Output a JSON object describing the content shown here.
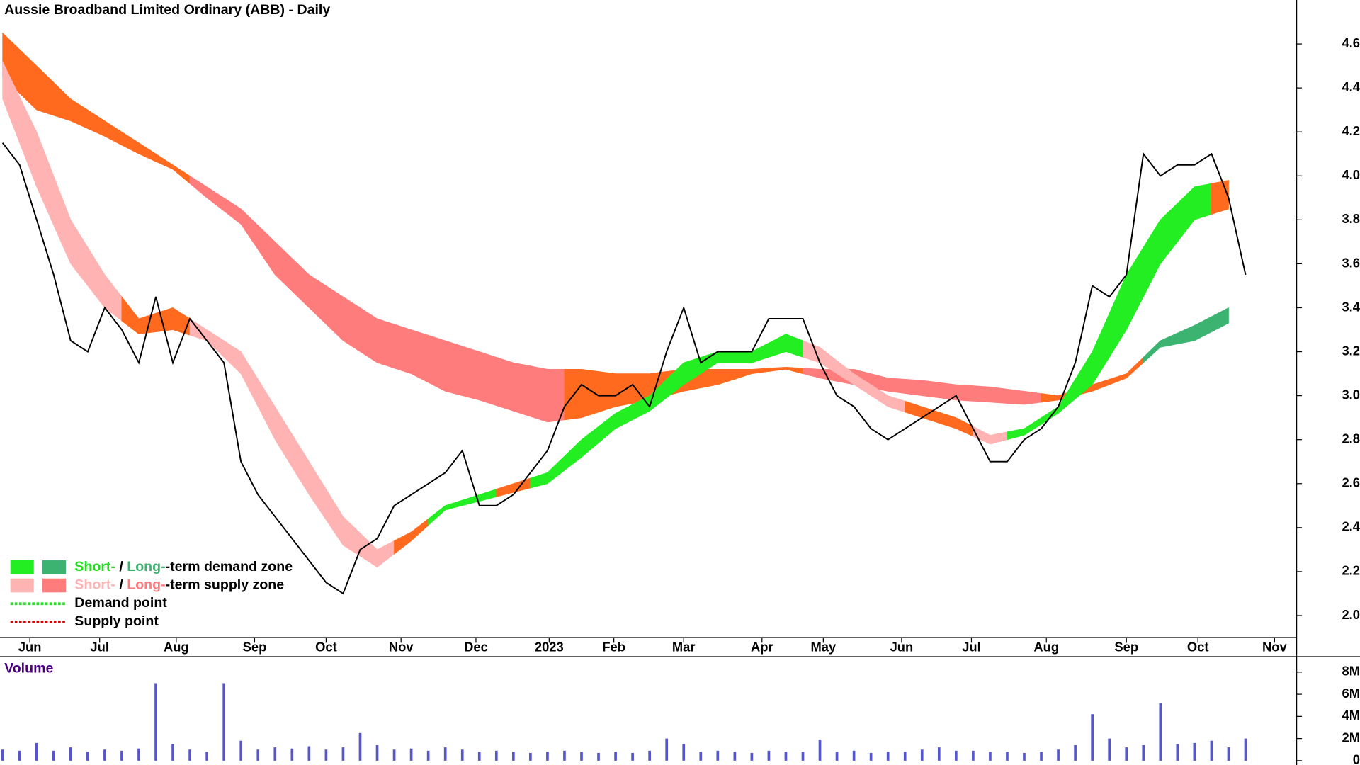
{
  "chart_data": [
    {
      "type": "line",
      "title": "Aussie Broadband Limited Ordinary (ABB) - Daily",
      "x": [
        0,
        1,
        2,
        3,
        4,
        5,
        6,
        7,
        8,
        9,
        10,
        11,
        12,
        13,
        14,
        15,
        16,
        17,
        18,
        19,
        20,
        21,
        22,
        23,
        24,
        25,
        26,
        27,
        28,
        29,
        30,
        31,
        32,
        33,
        34,
        35,
        36,
        37,
        38,
        39,
        40,
        41,
        42,
        43,
        44,
        45,
        46,
        47,
        48,
        49,
        50,
        51,
        52,
        53,
        54,
        55,
        56,
        57,
        58,
        59,
        60,
        61,
        62,
        63,
        64,
        65,
        66,
        67,
        68,
        69,
        70,
        71,
        72,
        73
      ],
      "series": [
        {
          "color": "#000000",
          "values": [
            4.15,
            4.05,
            3.8,
            3.55,
            3.25,
            3.2,
            3.4,
            3.3,
            3.15,
            3.45,
            3.15,
            3.35,
            3.25,
            3.15,
            2.7,
            2.55,
            2.45,
            2.35,
            2.25,
            2.15,
            2.1,
            2.3,
            2.35,
            2.5,
            2.55,
            2.6,
            2.65,
            2.75,
            2.5,
            2.5,
            2.55,
            2.65,
            2.75,
            2.95,
            3.05,
            3.0,
            3.0,
            3.05,
            2.95,
            3.2,
            3.4,
            3.15,
            3.2,
            3.2,
            3.2,
            3.35,
            3.35,
            3.35,
            3.15,
            3.0,
            2.95,
            2.85,
            2.8,
            2.85,
            2.9,
            2.95,
            3.0,
            2.85,
            2.7,
            2.7,
            2.8,
            2.85,
            2.95,
            3.15,
            3.5,
            3.45,
            3.55,
            4.1,
            4.0,
            4.05,
            4.05,
            4.1,
            3.9,
            3.55
          ]
        }
      ],
      "zones": [
        {
          "x": [
            0,
            2,
            4,
            6,
            8,
            10,
            12,
            14,
            16,
            18,
            20,
            22,
            24,
            26,
            28,
            30,
            32,
            34,
            36,
            38,
            40,
            42,
            44,
            46,
            48,
            50,
            52,
            54,
            56,
            58,
            60,
            62,
            64,
            66,
            68,
            70,
            72
          ],
          "upper": [
            4.65,
            4.5,
            4.35,
            4.25,
            4.15,
            4.05,
            3.95,
            3.85,
            3.7,
            3.55,
            3.45,
            3.35,
            3.3,
            3.25,
            3.2,
            3.15,
            3.12,
            3.12,
            3.1,
            3.1,
            3.12,
            3.12,
            3.12,
            3.13,
            3.12,
            3.12,
            3.08,
            3.07,
            3.05,
            3.04,
            3.02,
            3.0,
            3.05,
            3.1,
            3.25,
            3.32,
            3.4
          ],
          "lower": [
            4.45,
            4.3,
            4.25,
            4.18,
            4.1,
            4.03,
            3.9,
            3.78,
            3.55,
            3.4,
            3.25,
            3.15,
            3.1,
            3.02,
            2.98,
            2.93,
            2.88,
            2.9,
            2.95,
            2.98,
            3.02,
            3.05,
            3.1,
            3.12,
            3.08,
            3.05,
            3.02,
            3.0,
            2.98,
            2.97,
            2.96,
            2.98,
            3.02,
            3.08,
            3.22,
            3.25,
            3.33
          ],
          "colors": [
            "#ff6a1f",
            "#ff6a1f",
            "#ff6a1f",
            "#ff6a1f",
            "#ff6a1f",
            "#ff6a1f",
            "#ff7c7c",
            "#ff7c7c",
            "#ff7c7c",
            "#ff7c7c",
            "#ff7c7c",
            "#ff7c7c",
            "#ff7c7c",
            "#ff7c7c",
            "#ff7c7c",
            "#ff7c7c",
            "#ff7c7c",
            "#ff6a1f",
            "#ff6a1f",
            "#ff6a1f",
            "#ff6a1f",
            "#ff6a1f",
            "#ff6a1f",
            "#ff6a1f",
            "#ff7c7c",
            "#ff7c7c",
            "#ff7c7c",
            "#ff7c7c",
            "#ff7c7c",
            "#ff7c7c",
            "#ff7c7c",
            "#ff6a1f",
            "#ff6a1f",
            "#ff6a1f",
            "#3cb371",
            "#3cb371",
            "#3cb371"
          ]
        },
        {
          "x": [
            0,
            2,
            4,
            6,
            8,
            10,
            12,
            14,
            16,
            18,
            20,
            22,
            24,
            26,
            28,
            30,
            32,
            34,
            36,
            38,
            40,
            42,
            44,
            46,
            48,
            50,
            52,
            54,
            56,
            58,
            60,
            62,
            64,
            66,
            68,
            70,
            72
          ],
          "upper": [
            4.52,
            4.2,
            3.8,
            3.55,
            3.35,
            3.4,
            3.3,
            3.2,
            2.95,
            2.7,
            2.45,
            2.3,
            2.38,
            2.5,
            2.55,
            2.6,
            2.65,
            2.8,
            2.92,
            3.0,
            3.15,
            3.2,
            3.2,
            3.28,
            3.22,
            3.1,
            3.0,
            2.95,
            2.9,
            2.82,
            2.85,
            2.95,
            3.2,
            3.55,
            3.8,
            3.95,
            3.98
          ],
          "lower": [
            4.35,
            3.95,
            3.6,
            3.4,
            3.28,
            3.3,
            3.25,
            3.1,
            2.8,
            2.55,
            2.32,
            2.22,
            2.34,
            2.48,
            2.52,
            2.56,
            2.6,
            2.72,
            2.85,
            2.93,
            3.05,
            3.15,
            3.15,
            3.2,
            3.15,
            3.05,
            2.95,
            2.9,
            2.85,
            2.78,
            2.82,
            2.92,
            3.05,
            3.3,
            3.6,
            3.8,
            3.85
          ],
          "colors": [
            "#ffb3b3",
            "#ffb3b3",
            "#ffb3b3",
            "#ffb3b3",
            "#ff6a1f",
            "#ff6a1f",
            "#ffb3b3",
            "#ffb3b3",
            "#ffb3b3",
            "#ffb3b3",
            "#ffb3b3",
            "#ffb3b3",
            "#ff6a1f",
            "#22ee22",
            "#22ee22",
            "#ff6a1f",
            "#22ee22",
            "#22ee22",
            "#22ee22",
            "#22ee22",
            "#22ee22",
            "#22ee22",
            "#22ee22",
            "#22ee22",
            "#ffb3b3",
            "#ffb3b3",
            "#ffb3b3",
            "#ff6a1f",
            "#ff6a1f",
            "#ffb3b3",
            "#22ee22",
            "#22ee22",
            "#22ee22",
            "#22ee22",
            "#22ee22",
            "#22ee22",
            "#ff6a1f"
          ]
        }
      ],
      "xlim": [
        0,
        76
      ],
      "xticks": [
        {
          "value": 1.6,
          "label": "Jun"
        },
        {
          "value": 5.7,
          "label": "Jul"
        },
        {
          "value": 10.2,
          "label": "Aug"
        },
        {
          "value": 14.8,
          "label": "Sep"
        },
        {
          "value": 19.0,
          "label": "Oct"
        },
        {
          "value": 23.4,
          "label": "Nov"
        },
        {
          "value": 27.8,
          "label": "Dec"
        },
        {
          "value": 32.1,
          "label": "2023"
        },
        {
          "value": 35.9,
          "label": "Feb"
        },
        {
          "value": 40.0,
          "label": "Mar"
        },
        {
          "value": 44.6,
          "label": "Apr"
        },
        {
          "value": 48.2,
          "label": "May"
        },
        {
          "value": 52.8,
          "label": "Jun"
        },
        {
          "value": 56.9,
          "label": "Jul"
        },
        {
          "value": 61.3,
          "label": "Aug"
        },
        {
          "value": 66.0,
          "label": "Sep"
        },
        {
          "value": 70.2,
          "label": "Oct"
        },
        {
          "value": 74.7,
          "label": "Nov"
        }
      ],
      "ylim": [
        1.9,
        4.8
      ],
      "yticks": [
        {
          "value": 2,
          "label": "2.0"
        },
        2.2,
        2.4,
        2.6,
        2.8,
        {
          "value": 3,
          "label": "3.0"
        },
        3.2,
        3.4,
        3.6,
        3.8,
        {
          "value": 4,
          "label": "4.0"
        },
        4.2,
        4.4,
        4.6
      ],
      "legend": {
        "position": "lower left",
        "items": [
          {
            "swatches": [
              "#22ee22",
              "#3cb371"
            ],
            "parts": [
              {
                "text": "Short-",
                "color": "#22dd22"
              },
              {
                "text": " / ",
                "color": "#000000"
              },
              {
                "text": "Long-",
                "color": "#3cb371"
              },
              {
                "text": "-term demand zone",
                "color": "#000000"
              }
            ]
          },
          {
            "swatches": [
              "#ffb3b3",
              "#ff7c7c"
            ],
            "parts": [
              {
                "text": "Short-",
                "color": "#ffb3b3"
              },
              {
                "text": " / ",
                "color": "#000000"
              },
              {
                "text": "Long-",
                "color": "#ff7c7c"
              },
              {
                "text": "-term supply zone",
                "color": "#000000"
              }
            ]
          },
          {
            "dotted": "#22dd22",
            "parts": [
              {
                "text": "Demand point",
                "color": "#000000"
              }
            ]
          },
          {
            "dotted": "#dd0000",
            "parts": [
              {
                "text": "Supply point",
                "color": "#000000"
              }
            ]
          }
        ]
      }
    },
    {
      "type": "bar",
      "title": "Volume",
      "title_color": "#4b0082",
      "color": "#5555cc",
      "x": [
        0,
        1,
        2,
        3,
        4,
        5,
        6,
        7,
        8,
        9,
        10,
        11,
        12,
        13,
        14,
        15,
        16,
        17,
        18,
        19,
        20,
        21,
        22,
        23,
        24,
        25,
        26,
        27,
        28,
        29,
        30,
        31,
        32,
        33,
        34,
        35,
        36,
        37,
        38,
        39,
        40,
        41,
        42,
        43,
        44,
        45,
        46,
        47,
        48,
        49,
        50,
        51,
        52,
        53,
        54,
        55,
        56,
        57,
        58,
        59,
        60,
        61,
        62,
        63,
        64,
        65,
        66,
        67,
        68,
        69,
        70,
        71,
        72,
        73
      ],
      "values": [
        1.0,
        0.9,
        1.6,
        0.9,
        1.2,
        0.8,
        1.0,
        0.9,
        1.1,
        7.0,
        1.5,
        1.0,
        0.8,
        7.0,
        1.8,
        1.0,
        1.2,
        1.1,
        1.3,
        1.0,
        1.2,
        2.5,
        1.4,
        1.0,
        1.1,
        0.9,
        1.2,
        1.0,
        0.8,
        0.9,
        0.8,
        0.7,
        0.8,
        0.9,
        0.8,
        0.7,
        0.8,
        0.7,
        0.9,
        2.0,
        1.5,
        0.8,
        0.9,
        0.8,
        0.7,
        0.9,
        0.8,
        0.8,
        1.9,
        0.8,
        0.9,
        0.7,
        0.8,
        0.8,
        1.0,
        1.2,
        0.9,
        0.9,
        0.8,
        0.8,
        0.7,
        0.8,
        1.0,
        1.4,
        4.2,
        2.0,
        1.2,
        1.4,
        5.2,
        1.5,
        1.6,
        1.8,
        1.2,
        2.0
      ],
      "xlim": [
        0,
        76
      ],
      "ylim": [
        0,
        9.4
      ],
      "yticks": [
        0,
        {
          "value": 2,
          "label": "2M"
        },
        {
          "value": 4,
          "label": "4M"
        },
        {
          "value": 6,
          "label": "6M"
        },
        {
          "value": 8,
          "label": "8M"
        }
      ]
    }
  ]
}
